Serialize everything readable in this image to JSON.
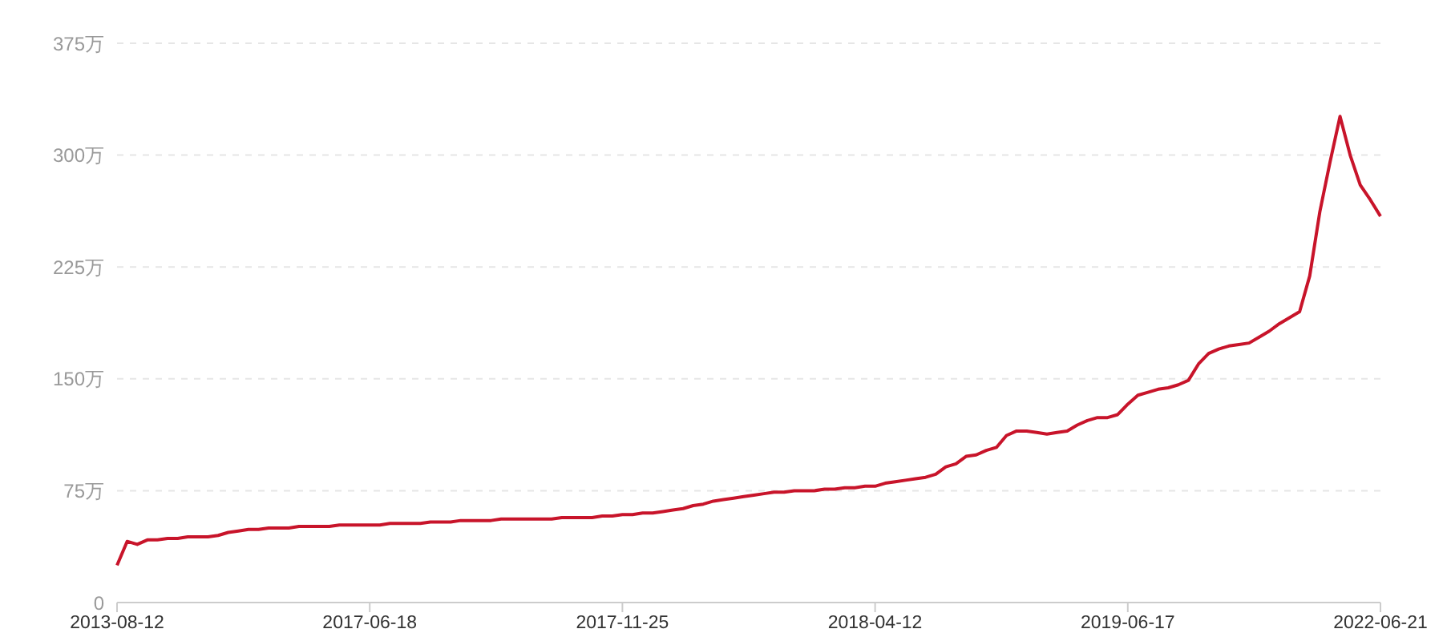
{
  "chart_data": {
    "type": "line",
    "categories": [
      "2013-08-12",
      null,
      null,
      null,
      null,
      null,
      null,
      null,
      null,
      null,
      null,
      null,
      null,
      null,
      null,
      null,
      null,
      null,
      null,
      null,
      null,
      null,
      null,
      null,
      null,
      "2017-06-18",
      null,
      null,
      null,
      null,
      null,
      null,
      null,
      null,
      null,
      null,
      null,
      null,
      null,
      null,
      null,
      null,
      null,
      null,
      null,
      null,
      null,
      null,
      null,
      null,
      "2017-11-25",
      null,
      null,
      null,
      null,
      null,
      null,
      null,
      null,
      null,
      null,
      null,
      null,
      null,
      null,
      null,
      null,
      null,
      null,
      null,
      null,
      null,
      null,
      null,
      null,
      "2018-04-12",
      null,
      null,
      null,
      null,
      null,
      null,
      null,
      null,
      null,
      null,
      null,
      null,
      null,
      null,
      null,
      null,
      null,
      null,
      null,
      null,
      null,
      null,
      null,
      null,
      "2019-06-17",
      null,
      null,
      null,
      null,
      null,
      null,
      null,
      null,
      null,
      null,
      null,
      null,
      null,
      null,
      null,
      null,
      null,
      null,
      null,
      null,
      null,
      null,
      null,
      null,
      "2022-06-21"
    ],
    "series": [
      {
        "color": "#c8142a",
        "values": [
          25,
          41,
          39,
          42,
          42,
          43,
          43,
          44,
          44,
          44,
          45,
          47,
          48,
          49,
          49,
          50,
          50,
          50,
          51,
          51,
          51,
          51,
          52,
          52,
          52,
          52,
          52,
          53,
          53,
          53,
          53,
          54,
          54,
          54,
          55,
          55,
          55,
          55,
          56,
          56,
          56,
          56,
          56,
          56,
          57,
          57,
          57,
          57,
          58,
          58,
          59,
          59,
          60,
          60,
          61,
          62,
          63,
          65,
          66,
          68,
          69,
          70,
          71,
          72,
          73,
          74,
          74,
          75,
          75,
          75,
          76,
          76,
          77,
          77,
          78,
          78,
          80,
          81,
          82,
          83,
          84,
          86,
          91,
          93,
          98,
          99,
          102,
          104,
          112,
          115,
          115,
          114,
          113,
          114,
          115,
          119,
          122,
          124,
          124,
          126,
          133,
          139,
          141,
          143,
          144,
          146,
          149,
          160,
          167,
          170,
          172,
          173,
          174,
          178,
          182,
          187,
          191,
          195,
          219,
          262,
          295,
          326,
          300,
          280,
          270,
          259
        ]
      }
    ],
    "ylim": [
      0,
      375
    ],
    "yticks": [
      0,
      {
        "value": 75,
        "label": "75万"
      },
      {
        "value": 150,
        "label": "150万"
      },
      {
        "value": 225,
        "label": "225万"
      },
      {
        "value": 300,
        "label": "300万"
      },
      {
        "value": 375,
        "label": "375万"
      }
    ],
    "grid": "y",
    "marker": "none",
    "line_style": "solid"
  }
}
